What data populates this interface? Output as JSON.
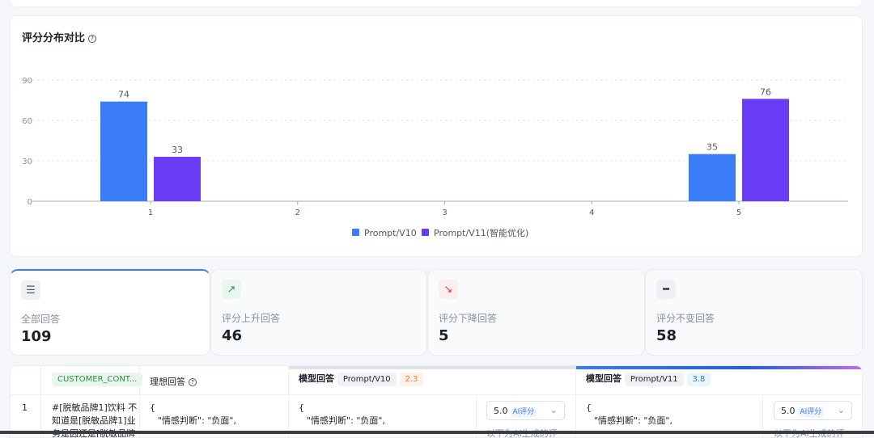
{
  "chart_section": {
    "title": "评分分布对比",
    "help_icon": "question-circle-icon"
  },
  "chart_data": {
    "type": "bar",
    "categories": [
      "1",
      "2",
      "3",
      "4",
      "5"
    ],
    "series": [
      {
        "name": "Prompt/V10",
        "values": [
          74,
          0,
          0,
          0,
          35
        ],
        "color": "#3a7cf7"
      },
      {
        "name": "Prompt/V11(智能优化)",
        "values": [
          33,
          0,
          0,
          0,
          76
        ],
        "color": "#6a3cf5"
      }
    ],
    "data_labels": [
      [
        "74",
        "",
        "",
        "",
        "35"
      ],
      [
        "33",
        "",
        "",
        "",
        "76"
      ]
    ],
    "yticks": [
      "0",
      "30",
      "60",
      "90"
    ],
    "ylim": [
      0,
      90
    ],
    "grid": true,
    "legend": "bottom"
  },
  "stats": [
    {
      "label": "全部回答",
      "value": "109",
      "icon": "list-icon"
    },
    {
      "label": "评分上升回答",
      "value": "46",
      "icon": "trend-up-icon"
    },
    {
      "label": "评分下降回答",
      "value": "5",
      "icon": "trend-down-icon"
    },
    {
      "label": "评分不变回答",
      "value": "58",
      "icon": "minus-icon"
    }
  ],
  "table": {
    "headers": {
      "customer_col": "CUSTOMER_CONT...",
      "ideal": "理想回答",
      "model_label": "模型回答",
      "v10": "Prompt/V10",
      "v10_score": "2.3",
      "v11": "Prompt/V11",
      "v11_score": "3.8"
    },
    "rows": [
      {
        "index": "1",
        "customer": [
          "#[脱敏品牌1]饮料 不",
          "知道是[脱敏品牌1]业",
          "务是因还是[脱敏品牌"
        ],
        "ideal": [
          "{",
          "\"情感判断\": \"负面\","
        ],
        "v10": [
          "{",
          "\"情感判断\": \"负面\","
        ],
        "v10_score": "5.0",
        "v10_score_tag": "AI评分",
        "v10_comment": "以下为AI生成的评",
        "v11": [
          "{",
          "\"情感判断\": \"负面\","
        ],
        "v11_score": "5.0",
        "v11_score_tag": "AI评分",
        "v11_comment": "以下为AI生成的评"
      }
    ]
  }
}
